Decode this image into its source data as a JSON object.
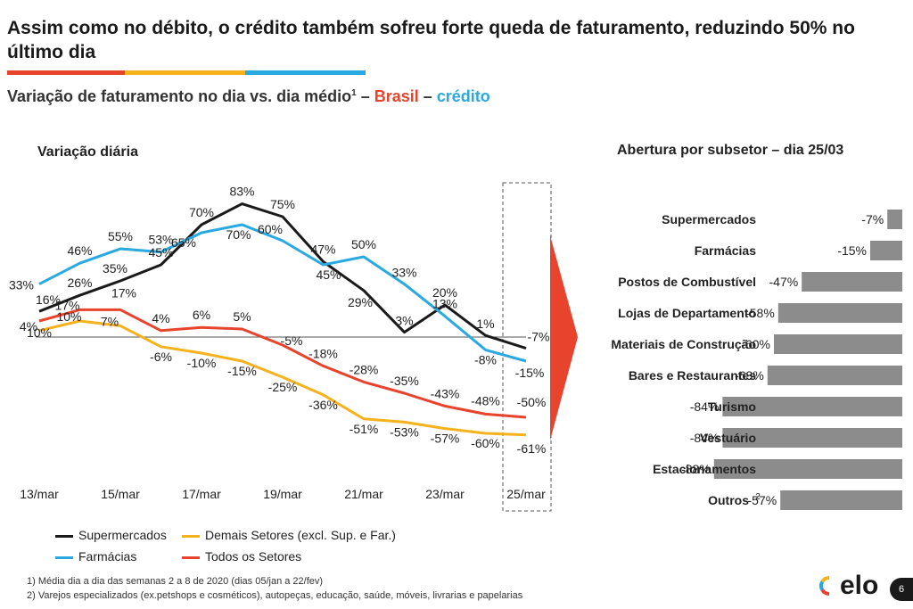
{
  "header": {
    "title": "Assim como no débito, o crédito também sofreu forte queda de faturamento, reduzindo 50% no último dia",
    "subtitle_main": "Variação de faturamento no dia vs. dia médio",
    "subtitle_sup": "1",
    "subtitle_dash1": " – ",
    "subtitle_brasil": "Brasil",
    "subtitle_dash2": " – ",
    "subtitle_credito": "crédito"
  },
  "colors": {
    "brasil": "#e8432d",
    "credito": "#29a9e1",
    "bar_red": "#e8432d",
    "bar_yellow": "#f5b21d",
    "bar_blue": "#29a9e1",
    "arrow": "#e8432d",
    "bars": "#8c8c8c"
  },
  "chart_data": [
    {
      "type": "line",
      "title": "Variação diária",
      "x": [
        "13/mar",
        "14/mar",
        "15/mar",
        "16/mar",
        "17/mar",
        "18/mar",
        "19/mar",
        "20/mar",
        "21/mar",
        "22/mar",
        "23/mar",
        "24/mar",
        "25/mar"
      ],
      "tick_labels": [
        "13/mar",
        "15/mar",
        "17/mar",
        "19/mar",
        "21/mar",
        "23/mar",
        "25/mar"
      ],
      "unit": "%",
      "baseline": 0,
      "highlight": "25/mar",
      "series": [
        {
          "name": "Supermercados",
          "color": "#1a1a1a",
          "values": [
            16,
            26,
            35,
            45,
            70,
            83,
            75,
            47,
            29,
            3,
            20,
            1,
            -7
          ],
          "labels": [
            "16%",
            "26%",
            "35%",
            "45%",
            "70%",
            "83%",
            "75%",
            "47%",
            "29%",
            "3%",
            "20%",
            "1%",
            "-7%"
          ]
        },
        {
          "name": "Farmácias",
          "color": "#29a9e1",
          "values": [
            33,
            46,
            55,
            53,
            65,
            70,
            60,
            45,
            50,
            33,
            13,
            -8,
            -15
          ],
          "labels": [
            "33%",
            "46%",
            "55%",
            "53%",
            "65%",
            "70%",
            "60%",
            "45%",
            "50%",
            "33%",
            "13%",
            "-8%",
            "-15%"
          ]
        },
        {
          "name": "Todos os Setores",
          "color": "#e8432d",
          "values": [
            10,
            17,
            17,
            4,
            6,
            5,
            -5,
            -18,
            -28,
            -35,
            -43,
            -48,
            -50
          ],
          "labels": [
            "10%",
            "17%",
            "17%",
            "4%",
            "6%",
            "5%",
            "-5%",
            "-18%",
            "-28%",
            "-35%",
            "-43%",
            "-48%",
            "-50%"
          ]
        },
        {
          "name": "Demais Setores (excl. Sup. e Far.)",
          "color": "#f5b21d",
          "values": [
            4,
            10,
            7,
            -6,
            -10,
            -15,
            -25,
            -36,
            -51,
            -53,
            -57,
            -60,
            -61
          ],
          "labels": [
            "4%",
            "10%",
            "7%",
            "-6%",
            "-10%",
            "-15%",
            "-25%",
            "-36%",
            "-51%",
            "-53%",
            "-57%",
            "-60%",
            "-61%"
          ]
        }
      ]
    },
    {
      "type": "bar",
      "title": "Abertura por subsetor – dia 25/03",
      "categories": [
        "Supermercados",
        "Farmácias",
        "Postos de Combustível",
        "Lojas de Departamento",
        "Materiais de Construção",
        "Bares e Restaurantes",
        "Turismo",
        "Vestuário",
        "Estacionamentos",
        "Outros"
      ],
      "category_sup": [
        "",
        "",
        "",
        "",
        "",
        "",
        "",
        "",
        "",
        "2"
      ],
      "values": [
        -7,
        -15,
        -47,
        -58,
        -60,
        -63,
        -84,
        -84,
        -88,
        -57
      ],
      "labels": [
        "-7%",
        "-15%",
        "-47%",
        "-58%",
        "-60%",
        "-63%",
        "-84%",
        "-84%",
        "-88%",
        "-57%"
      ]
    }
  ],
  "legend": [
    {
      "label": "Supermercados",
      "color": "#1a1a1a"
    },
    {
      "label": "Demais Setores (excl. Sup. e Far.)",
      "color": "#f5b21d"
    },
    {
      "label": "Farmácias",
      "color": "#29a9e1"
    },
    {
      "label": "Todos os Setores",
      "color": "#e8432d"
    }
  ],
  "footnotes": [
    "1)   Média dia a dia das semanas 2 a 8 de 2020 (dias 05/jan a 22/fev)",
    "2)   Varejos especializados (ex.petshops e cosméticos), autopeças, educação, saúde, móveis, livrarias e papelarias"
  ],
  "logo_text": "elo",
  "page_number": "6"
}
